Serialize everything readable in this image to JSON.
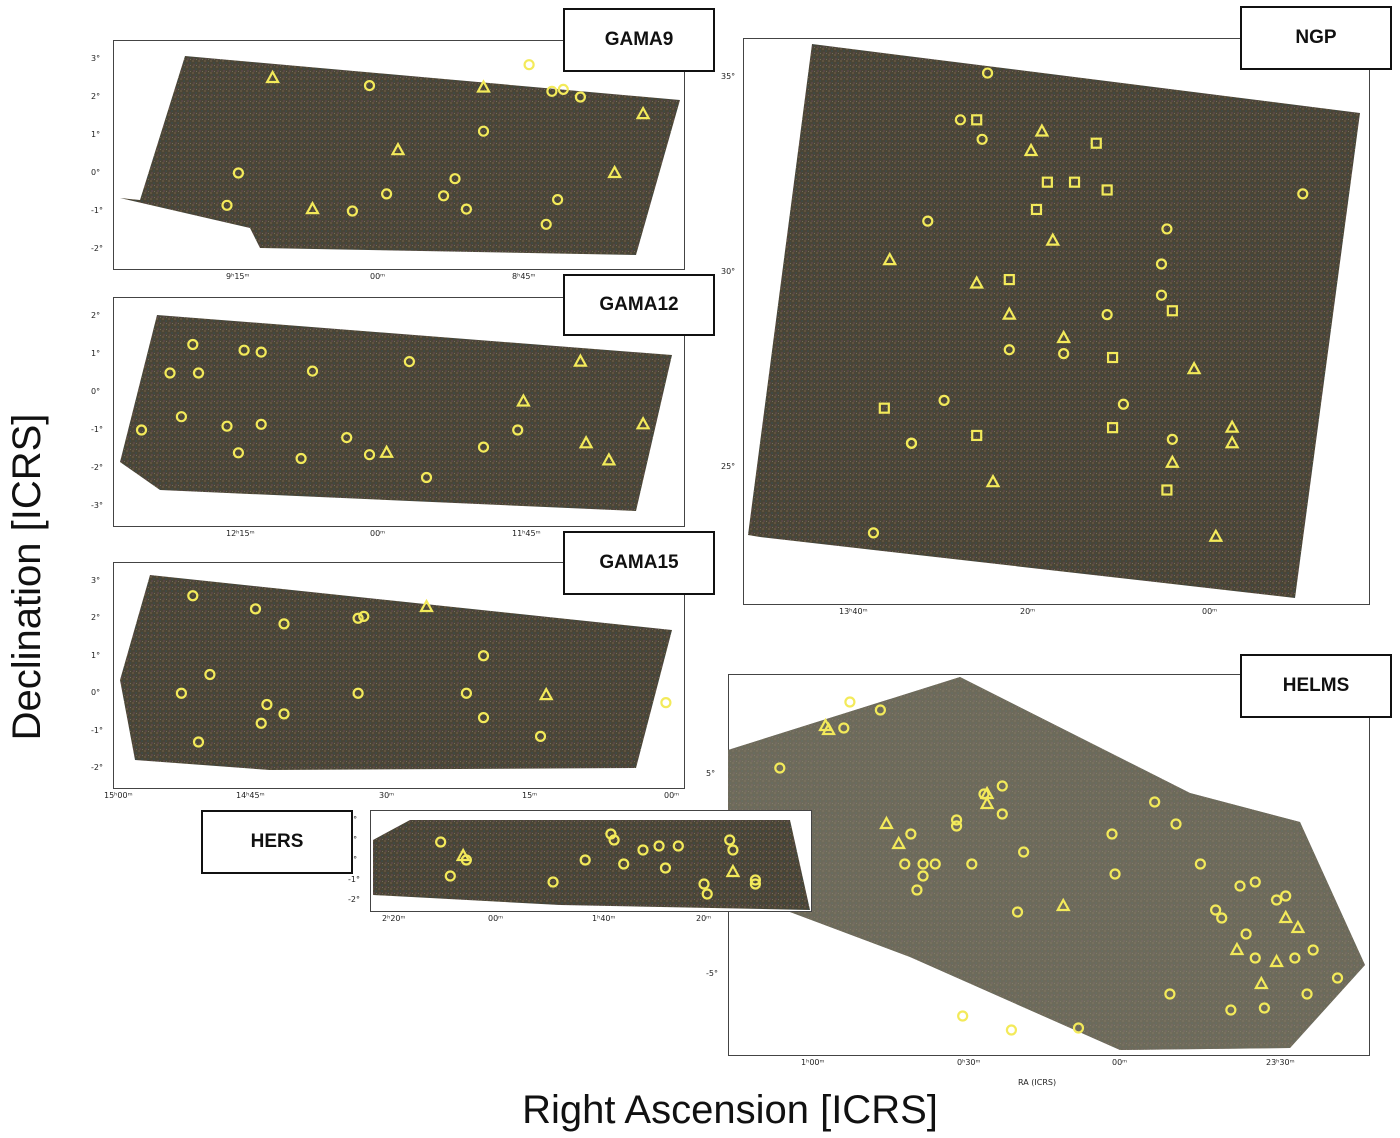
{
  "axes": {
    "ylabel": "Declination [ICRS]",
    "xlabel": "Right Ascension [ICRS]"
  },
  "colors": {
    "marker": "#f3ea5a",
    "sky_dark": "#4a4536",
    "sky_light": "#8b8878"
  },
  "chart_data": [
    {
      "type": "scatter",
      "field": "GAMA9",
      "xlabel": "",
      "ylabel": "",
      "x_ticks": [
        "9ʰ15ᵐ",
        "00ᵐ",
        "8ʰ45ᵐ"
      ],
      "y_ticks": [
        "3°",
        "2°",
        "1°",
        "0°",
        "-1°",
        "-2°"
      ],
      "ylim": [
        -2.5,
        3.5
      ],
      "xlim_hours": [
        9.5,
        8.5
      ],
      "series": [
        {
          "marker": "circle",
          "points": [
            [
              9.3,
              -0.85
            ],
            [
              9.28,
              0.0
            ],
            [
              9.05,
              2.3
            ],
            [
              9.02,
              -0.55
            ],
            [
              9.08,
              -1.0
            ],
            [
              8.92,
              -0.6
            ],
            [
              8.9,
              -0.15
            ],
            [
              8.88,
              -0.95
            ],
            [
              8.85,
              1.1
            ],
            [
              8.77,
              2.85
            ],
            [
              8.73,
              2.15
            ],
            [
              8.71,
              2.2
            ],
            [
              8.68,
              2.0
            ],
            [
              8.72,
              -0.7
            ],
            [
              8.74,
              -1.35
            ]
          ]
        },
        {
          "marker": "triangle",
          "points": [
            [
              9.22,
              2.5
            ],
            [
              9.15,
              -0.95
            ],
            [
              9.0,
              0.6
            ],
            [
              8.85,
              2.25
            ],
            [
              8.62,
              0.0
            ],
            [
              8.57,
              1.55
            ]
          ]
        }
      ]
    },
    {
      "type": "scatter",
      "field": "GAMA12",
      "xlabel": "",
      "ylabel": "",
      "x_ticks": [
        "12ʰ15ᵐ",
        "00ᵐ",
        "11ʰ45ᵐ"
      ],
      "y_ticks": [
        "2°",
        "1°",
        "0°",
        "-1°",
        "-2°",
        "-3°"
      ],
      "ylim": [
        -3.5,
        2.5
      ],
      "xlim_hours": [
        12.5,
        11.5
      ],
      "series": [
        {
          "marker": "circle",
          "points": [
            [
              12.45,
              -1.0
            ],
            [
              12.4,
              0.5
            ],
            [
              12.38,
              -0.65
            ],
            [
              12.36,
              1.25
            ],
            [
              12.35,
              0.5
            ],
            [
              12.3,
              -0.9
            ],
            [
              12.28,
              -1.6
            ],
            [
              12.27,
              1.1
            ],
            [
              12.24,
              -0.85
            ],
            [
              12.24,
              1.05
            ],
            [
              12.17,
              -1.75
            ],
            [
              12.15,
              0.55
            ],
            [
              12.09,
              -1.2
            ],
            [
              12.05,
              -1.65
            ],
            [
              11.95,
              -2.25
            ],
            [
              11.98,
              0.8
            ],
            [
              11.85,
              -1.45
            ],
            [
              11.79,
              -1.0
            ]
          ]
        },
        {
          "marker": "triangle",
          "points": [
            [
              12.02,
              -1.6
            ],
            [
              11.78,
              -0.25
            ],
            [
              11.68,
              0.8
            ],
            [
              11.67,
              -1.35
            ],
            [
              11.63,
              -1.8
            ],
            [
              11.57,
              -0.85
            ]
          ]
        }
      ]
    },
    {
      "type": "scatter",
      "field": "GAMA15",
      "xlabel": "",
      "ylabel": "",
      "x_ticks": [
        "15ʰ00ᵐ",
        "14ʰ45ᵐ",
        "30ᵐ",
        "15ᵐ",
        "00ᵐ"
      ],
      "y_ticks": [
        "3°",
        "2°",
        "1°",
        "0°",
        "-1°",
        "-2°"
      ],
      "ylim": [
        -2.5,
        3.5
      ],
      "xlim_hours": [
        15.0,
        14.0
      ],
      "series": [
        {
          "marker": "circle",
          "points": [
            [
              14.88,
              0.0
            ],
            [
              14.86,
              2.6
            ],
            [
              14.85,
              -1.3
            ],
            [
              14.83,
              0.5
            ],
            [
              14.75,
              2.25
            ],
            [
              14.74,
              -0.8
            ],
            [
              14.73,
              -0.3
            ],
            [
              14.7,
              -0.55
            ],
            [
              14.7,
              1.85
            ],
            [
              14.57,
              0.0
            ],
            [
              14.57,
              2.0
            ],
            [
              14.56,
              2.05
            ],
            [
              14.38,
              0.0
            ],
            [
              14.35,
              1.0
            ],
            [
              14.35,
              -0.65
            ],
            [
              14.25,
              -1.15
            ],
            [
              14.03,
              -0.25
            ]
          ]
        },
        {
          "marker": "triangle",
          "points": [
            [
              14.45,
              2.3
            ],
            [
              14.24,
              -0.05
            ]
          ]
        }
      ]
    },
    {
      "type": "scatter",
      "field": "NGP",
      "xlabel": "",
      "ylabel": "",
      "x_ticks": [
        "13ʰ40ᵐ",
        "20ᵐ",
        "00ᵐ"
      ],
      "y_ticks": [
        "35°",
        "30°",
        "25°"
      ],
      "ylim": [
        21.5,
        36.0
      ],
      "xlim_hours": [
        13.92,
        12.77
      ],
      "series": [
        {
          "marker": "circle",
          "points": [
            [
              13.47,
              35.1
            ],
            [
              13.52,
              33.9
            ],
            [
              13.48,
              33.4
            ],
            [
              13.58,
              31.3
            ],
            [
              12.89,
              32.0
            ],
            [
              13.14,
              31.1
            ],
            [
              13.15,
              30.2
            ],
            [
              13.15,
              29.4
            ],
            [
              13.25,
              28.9
            ],
            [
              13.43,
              28.0
            ],
            [
              13.33,
              27.9
            ],
            [
              13.55,
              26.7
            ],
            [
              13.22,
              26.6
            ],
            [
              13.61,
              25.6
            ],
            [
              13.61,
              25.6
            ],
            [
              13.13,
              25.7
            ],
            [
              13.68,
              23.3
            ]
          ]
        },
        {
          "marker": "square",
          "points": [
            [
              13.49,
              33.9
            ],
            [
              13.27,
              33.3
            ],
            [
              13.36,
              32.3
            ],
            [
              13.31,
              32.3
            ],
            [
              13.25,
              32.1
            ],
            [
              13.38,
              31.6
            ],
            [
              13.43,
              29.8
            ],
            [
              13.24,
              27.8
            ],
            [
              13.24,
              26.0
            ],
            [
              13.66,
              26.5
            ],
            [
              13.49,
              25.8
            ],
            [
              13.13,
              29.0
            ],
            [
              13.14,
              24.4
            ]
          ]
        },
        {
          "marker": "triangle",
          "points": [
            [
              13.37,
              33.6
            ],
            [
              13.39,
              33.1
            ],
            [
              13.35,
              30.8
            ],
            [
              13.65,
              30.3
            ],
            [
              13.49,
              29.7
            ],
            [
              13.43,
              28.9
            ],
            [
              13.33,
              28.3
            ],
            [
              13.09,
              27.5
            ],
            [
              13.02,
              26.0
            ],
            [
              13.02,
              25.6
            ],
            [
              13.13,
              25.1
            ],
            [
              13.46,
              24.6
            ],
            [
              13.05,
              23.2
            ]
          ]
        }
      ]
    },
    {
      "type": "scatter",
      "field": "HELMS",
      "xlabel": "RA (ICRS)",
      "ylabel": "",
      "x_ticks": [
        "1ʰ00ᵐ",
        "0ʰ30ᵐ",
        "00ᵐ",
        "23ʰ30ᵐ"
      ],
      "y_ticks": [
        "5°",
        "-5°"
      ],
      "ylim": [
        -9.0,
        10.0
      ],
      "xlim_hours": [
        1.3,
        23.2
      ],
      "series": [
        {
          "marker": "circle",
          "points": [
            [
              1.13,
              5.3
            ],
            [
              0.92,
              7.3
            ],
            [
              0.9,
              8.6
            ],
            [
              0.8,
              8.2
            ],
            [
              0.7,
              2.0
            ],
            [
              0.72,
              0.5
            ],
            [
              0.68,
              -0.8
            ],
            [
              0.66,
              -0.1
            ],
            [
              0.66,
              0.5
            ],
            [
              0.62,
              0.5
            ],
            [
              0.55,
              2.4
            ],
            [
              0.55,
              2.7
            ],
            [
              0.5,
              0.5
            ],
            [
              0.46,
              4.0
            ],
            [
              0.4,
              4.4
            ],
            [
              0.4,
              3.0
            ],
            [
              0.33,
              1.1
            ],
            [
              0.35,
              -1.9
            ],
            [
              0.04,
              2.0
            ],
            [
              0.03,
              0.0
            ],
            [
              -0.1,
              3.6
            ],
            [
              -0.17,
              2.5
            ],
            [
              -0.25,
              0.5
            ],
            [
              -0.3,
              -1.8
            ],
            [
              -0.32,
              -2.2
            ],
            [
              -0.38,
              -0.6
            ],
            [
              -0.4,
              -3.0
            ],
            [
              -0.43,
              -0.4
            ],
            [
              -0.5,
              -1.3
            ],
            [
              -0.53,
              -1.1
            ],
            [
              -0.43,
              -4.2
            ],
            [
              -0.56,
              -4.2
            ],
            [
              -0.62,
              -3.8
            ],
            [
              -0.6,
              -6.0
            ],
            [
              -0.7,
              -5.2
            ],
            [
              0.15,
              -7.7
            ],
            [
              0.37,
              -7.8
            ],
            [
              -0.15,
              -6.0
            ],
            [
              -0.35,
              -6.8
            ],
            [
              -0.46,
              -6.7
            ],
            [
              0.53,
              -7.1
            ]
          ]
        },
        {
          "marker": "triangle",
          "points": [
            [
              0.98,
              7.4
            ],
            [
              0.97,
              7.2
            ],
            [
              0.78,
              2.5
            ],
            [
              0.74,
              1.5
            ],
            [
              0.45,
              4.0
            ],
            [
              0.45,
              3.5
            ],
            [
              0.2,
              -1.6
            ],
            [
              -0.37,
              -3.8
            ],
            [
              -0.45,
              -5.5
            ],
            [
              -0.5,
              -4.4
            ],
            [
              -0.53,
              -2.2
            ],
            [
              -0.57,
              -2.7
            ]
          ]
        }
      ]
    },
    {
      "type": "scatter",
      "field": "HERS",
      "xlabel": "",
      "ylabel": "",
      "x_ticks": [
        "2ʰ20ᵐ",
        "00ᵐ",
        "1ʰ40ᵐ",
        "20ᵐ"
      ],
      "y_ticks": [
        "2°",
        "1°",
        "0°",
        "-1°",
        "-2°"
      ],
      "ylim": [
        -2.5,
        2.5
      ],
      "xlim_hours": [
        2.42,
        1.05
      ],
      "series": [
        {
          "marker": "circle",
          "points": [
            [
              2.2,
              0.9
            ],
            [
              2.17,
              -0.8
            ],
            [
              2.12,
              0.0
            ],
            [
              1.85,
              -1.1
            ],
            [
              1.75,
              0.0
            ],
            [
              1.67,
              1.3
            ],
            [
              1.66,
              1.0
            ],
            [
              1.63,
              -0.2
            ],
            [
              1.57,
              0.5
            ],
            [
              1.52,
              0.7
            ],
            [
              1.5,
              -0.4
            ],
            [
              1.46,
              0.7
            ],
            [
              1.38,
              -1.2
            ],
            [
              1.37,
              -1.7
            ],
            [
              1.3,
              1.0
            ],
            [
              1.29,
              0.5
            ],
            [
              1.22,
              -1.0
            ],
            [
              1.22,
              -1.2
            ]
          ]
        },
        {
          "marker": "triangle",
          "points": [
            [
              2.13,
              0.2
            ],
            [
              1.29,
              -0.6
            ]
          ]
        }
      ]
    }
  ]
}
